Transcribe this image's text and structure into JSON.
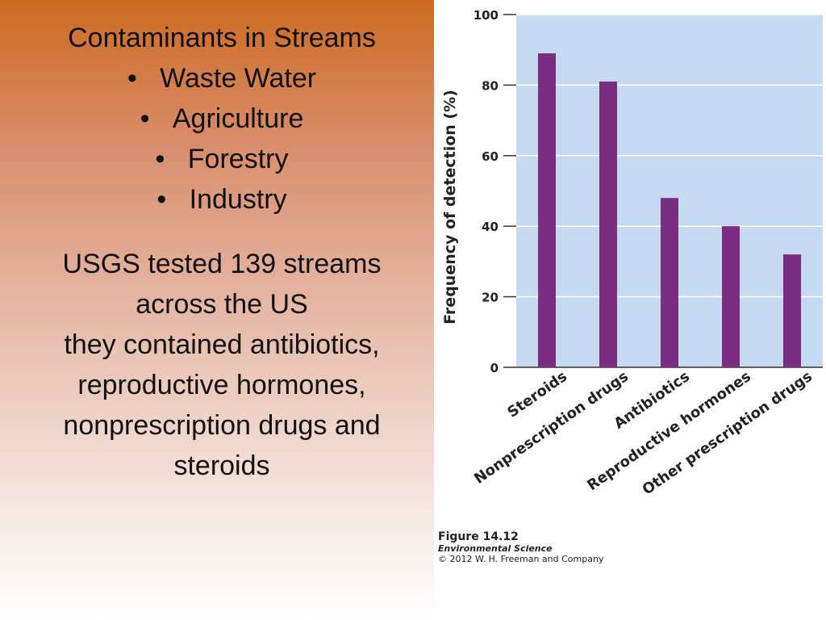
{
  "slide": {
    "heading": "Contaminants in Streams",
    "bullets": [
      "Waste Water",
      "Agriculture",
      "Forestry",
      "Industry"
    ],
    "body_lines": [
      "USGS tested 139 streams",
      "across the US",
      "they contained antibiotics,",
      "reproductive hormones,",
      "nonprescription drugs and",
      "steroids"
    ]
  },
  "figure_caption": {
    "title": "Figure 14.12",
    "subtitle": "Environmental Science",
    "copyright": "© 2012 W. H. Freeman and Company"
  },
  "colors": {
    "bar": "#7b2d82",
    "plot_bg": "#c5d9f0",
    "grid": "#ffffff"
  },
  "chart_data": {
    "type": "bar",
    "title": "",
    "xlabel": "",
    "ylabel": "Frequency of detection (%)",
    "categories": [
      "Steroids",
      "Nonprescription drugs",
      "Antibiotics",
      "Reproductive hormones",
      "Other prescription drugs"
    ],
    "values": [
      89,
      81,
      48,
      40,
      32
    ],
    "ylim": [
      0,
      100
    ],
    "yticks": [
      0,
      20,
      40,
      60,
      80,
      100
    ],
    "grid": true
  }
}
